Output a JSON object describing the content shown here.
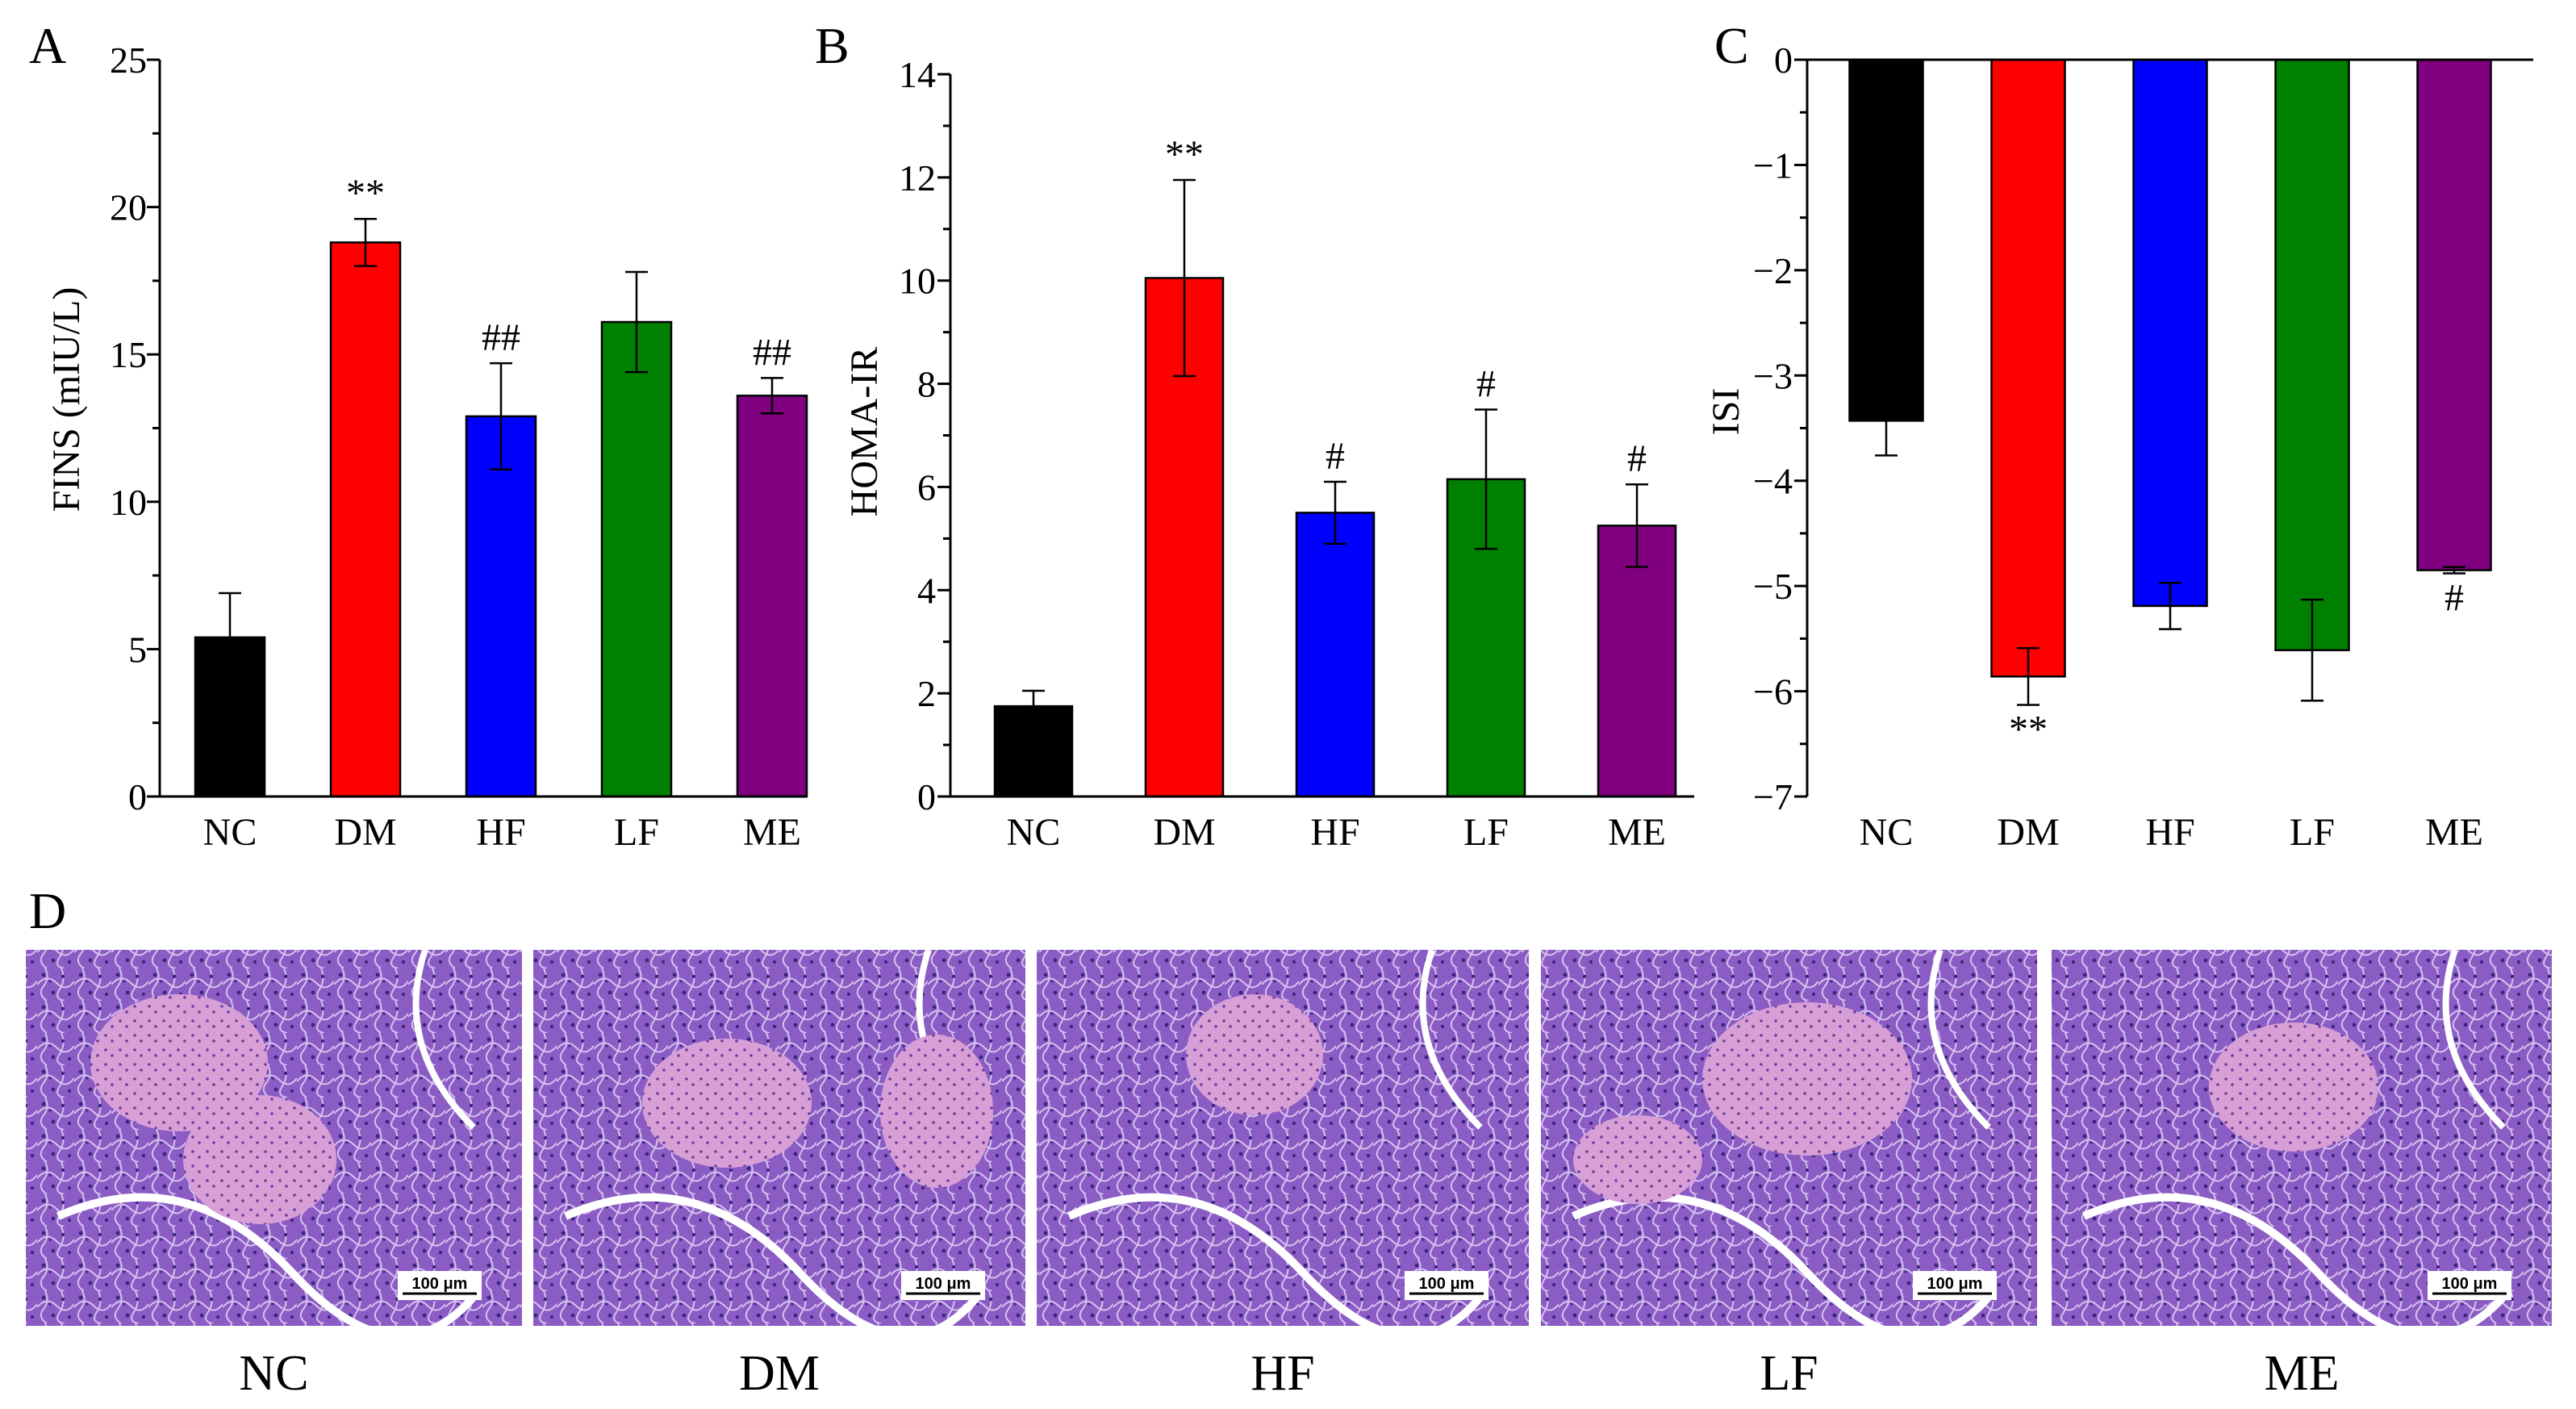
{
  "chart_data": [
    {
      "panel": "A",
      "type": "bar",
      "categories": [
        "NC",
        "DM",
        "HF",
        "LF",
        "ME"
      ],
      "values": [
        5.4,
        18.8,
        12.9,
        16.1,
        13.6
      ],
      "errors": [
        1.5,
        0.8,
        1.8,
        1.7,
        0.6
      ],
      "significance": [
        "",
        "**",
        "##",
        "",
        "##"
      ],
      "colors": [
        "#000000",
        "#ff0000",
        "#0000ff",
        "#008000",
        "#800080"
      ],
      "ylabel": "FINS (mIU/L)",
      "ylim": [
        0,
        25
      ],
      "yticks": [
        0,
        5,
        10,
        15,
        20,
        25
      ]
    },
    {
      "panel": "B",
      "type": "bar",
      "categories": [
        "NC",
        "DM",
        "HF",
        "LF",
        "ME"
      ],
      "values": [
        1.75,
        10.05,
        5.5,
        6.15,
        5.25
      ],
      "errors": [
        0.3,
        1.9,
        0.6,
        1.35,
        0.8
      ],
      "significance": [
        "",
        "**",
        "#",
        "#",
        "#"
      ],
      "colors": [
        "#000000",
        "#ff0000",
        "#0000ff",
        "#008000",
        "#800080"
      ],
      "ylabel": "HOMA-IR",
      "ylim": [
        0,
        14
      ],
      "yticks": [
        0,
        2,
        4,
        6,
        8,
        10,
        12,
        14
      ]
    },
    {
      "panel": "C",
      "type": "bar",
      "categories": [
        "NC",
        "DM",
        "HF",
        "LF",
        "ME"
      ],
      "values": [
        -3.43,
        -5.86,
        -5.19,
        -5.61,
        -4.85
      ],
      "errors": [
        0.33,
        0.27,
        0.22,
        0.48,
        0.03
      ],
      "significance": [
        "",
        "**",
        "",
        "",
        "#"
      ],
      "colors": [
        "#000000",
        "#ff0000",
        "#0000ff",
        "#008000",
        "#800080"
      ],
      "ylabel": "ISI",
      "ylim": [
        -7,
        0
      ],
      "yticks": [
        0,
        -1,
        -2,
        -3,
        -4,
        -5,
        -6,
        -7
      ]
    }
  ],
  "micrographs": {
    "panel": "D",
    "labels": [
      "NC",
      "DM",
      "HF",
      "LF",
      "ME"
    ],
    "scale_bar": "100 μm"
  }
}
